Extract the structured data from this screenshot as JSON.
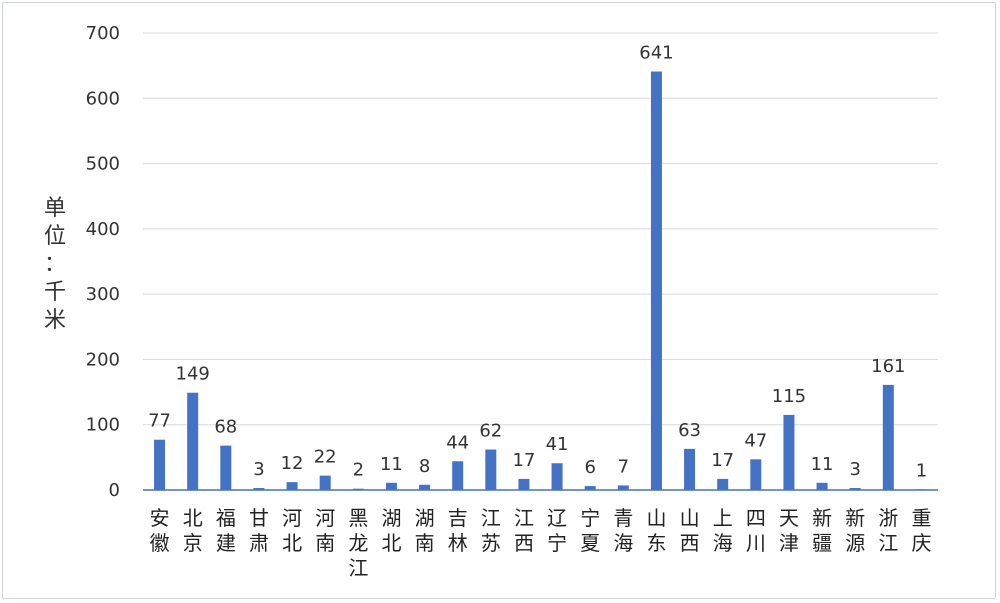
{
  "chart_data": {
    "type": "bar",
    "title": "",
    "xlabel": "",
    "ylabel": "单位：千米",
    "ylim": [
      0,
      700
    ],
    "yticks": [
      0,
      100,
      200,
      300,
      400,
      500,
      600,
      700
    ],
    "grid": true,
    "legend": "none",
    "bar_color": "#4472C4",
    "categories": [
      "安徽",
      "北京",
      "福建",
      "甘肃",
      "河北",
      "河南",
      "黑龙江",
      "湖北",
      "湖南",
      "吉林",
      "江苏",
      "江西",
      "辽宁",
      "宁夏",
      "青海",
      "山东",
      "山西",
      "上海",
      "四川",
      "天津",
      "新疆",
      "新源",
      "浙江",
      "重庆"
    ],
    "values": [
      77,
      149,
      68,
      3,
      12,
      22,
      2,
      11,
      8,
      44,
      62,
      17,
      41,
      6,
      7,
      641,
      63,
      17,
      47,
      115,
      11,
      3,
      161,
      1
    ]
  }
}
